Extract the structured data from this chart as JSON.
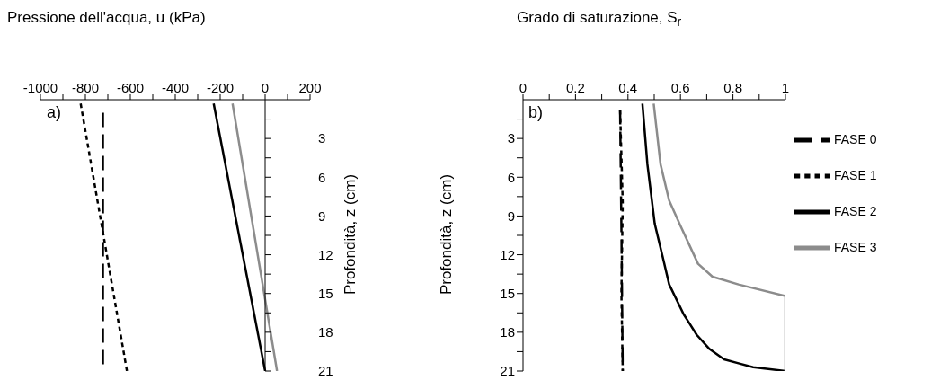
{
  "chart_data": [
    {
      "type": "line",
      "xlabel": "Pressione dell'acqua, u (kPa)",
      "ylabel": "Profondità, z (cm)",
      "annotations": [
        "a)"
      ],
      "marker": "none",
      "xlim": [
        -1000,
        200
      ],
      "xticks": [
        -1000,
        {
          "value": -900,
          "label": null
        },
        -800,
        {
          "value": -700,
          "label": null
        },
        -600,
        {
          "value": -500,
          "label": null
        },
        -400,
        {
          "value": -300,
          "label": null
        },
        -200,
        {
          "value": -100,
          "label": null
        },
        0,
        {
          "value": 100,
          "label": null
        },
        200
      ],
      "ylim": [
        21,
        0
      ],
      "yticks": [
        {
          "value": 1.5,
          "label": null
        },
        3,
        {
          "value": 4.5,
          "label": null
        },
        6,
        {
          "value": 7.5,
          "label": null
        },
        9,
        {
          "value": 10.5,
          "label": null
        },
        12,
        {
          "value": 13.5,
          "label": null
        },
        15,
        {
          "value": 16.5,
          "label": null
        },
        18,
        {
          "value": 19.5,
          "label": null
        },
        21
      ],
      "series": [
        {
          "color": "#000000",
          "line_style": "dashed",
          "x": [
            -722,
            -722
          ],
          "values": [
            1,
            21
          ]
        },
        {
          "color": "#000000",
          "line_style": "dotted",
          "x": [
            -821,
            -615
          ],
          "values": [
            0.3,
            21
          ]
        },
        {
          "color": "#000000",
          "line_style": "solid",
          "x": [
            -229,
            0
          ],
          "values": [
            0.3,
            21
          ]
        },
        {
          "color": "#8c8c8c",
          "line_style": "solid",
          "x": [
            -145,
            53
          ],
          "values": [
            0.3,
            21
          ]
        }
      ]
    },
    {
      "type": "line",
      "xlabel": "Grado di saturazione, S$_{r}$",
      "ylabel": "Profondità, z (cm)",
      "annotations": [
        "b)"
      ],
      "marker": "none",
      "legend": "right",
      "xlim": [
        0,
        1
      ],
      "xticks": [
        0,
        {
          "value": 0.1,
          "label": null
        },
        0.2,
        {
          "value": 0.3,
          "label": null
        },
        0.4,
        {
          "value": 0.5,
          "label": null
        },
        0.6,
        {
          "value": 0.7,
          "label": null
        },
        0.8,
        {
          "value": 0.9,
          "label": null
        },
        1
      ],
      "ylim": [
        21,
        0
      ],
      "yticks": [
        {
          "value": 1.5,
          "label": null
        },
        3,
        {
          "value": 4.5,
          "label": null
        },
        6,
        {
          "value": 7.5,
          "label": null
        },
        9,
        {
          "value": 10.5,
          "label": null
        },
        12,
        {
          "value": 13.5,
          "label": null
        },
        15,
        {
          "value": 16.5,
          "label": null
        },
        18,
        {
          "value": 19.5,
          "label": null
        },
        21
      ],
      "series": [
        {
          "name": "FASE 0",
          "color": "#000000",
          "line_style": "dashed",
          "x": [
            0.37,
            0.375,
            0.38
          ],
          "values": [
            0.8,
            10,
            21
          ]
        },
        {
          "name": "FASE 1",
          "color": "#000000",
          "line_style": "dotted",
          "x": [
            0.37,
            0.38,
            0.375,
            0.38
          ],
          "values": [
            0.8,
            8,
            15,
            21
          ]
        },
        {
          "name": "FASE 2",
          "color": "#000000",
          "line_style": "solid",
          "x": [
            0.455,
            0.474,
            0.502,
            0.535,
            0.557,
            0.612,
            0.662,
            0.711,
            0.766,
            0.821,
            0.877,
            1
          ],
          "values": [
            0.3,
            5,
            9.6,
            12.4,
            14.3,
            16.6,
            18.2,
            19.3,
            20.1,
            20.4,
            20.7,
            21
          ]
        },
        {
          "name": "FASE 3",
          "color": "#8c8c8c",
          "line_style": "solid",
          "x": [
            0.498,
            0.524,
            0.557,
            0.601,
            0.667,
            0.722,
            0.821,
            1,
            1
          ],
          "values": [
            0.3,
            5,
            7.8,
            9.8,
            12.7,
            13.7,
            14.3,
            15.2,
            21
          ]
        }
      ]
    }
  ]
}
